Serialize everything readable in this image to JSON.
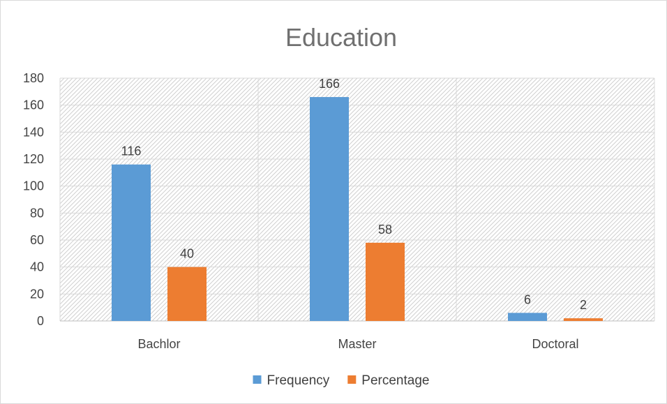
{
  "chart_data": {
    "type": "bar",
    "title": "Education",
    "categories": [
      "Bachlor",
      "Master",
      "Doctoral"
    ],
    "series": [
      {
        "name": "Frequency",
        "color": "#5B9BD5",
        "values": [
          116,
          166,
          6
        ]
      },
      {
        "name": "Percentage",
        "color": "#ED7D31",
        "values": [
          40,
          58,
          2
        ]
      }
    ],
    "ylim": [
      0,
      180
    ],
    "yticks": [
      0,
      20,
      40,
      60,
      80,
      100,
      120,
      140,
      160,
      180
    ],
    "grid": true,
    "legend": "bottom"
  }
}
